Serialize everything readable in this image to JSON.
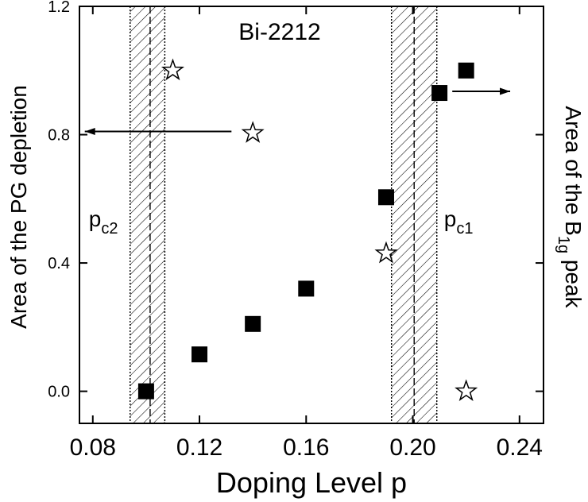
{
  "chart_data": {
    "type": "scatter",
    "title": "Bi-2212",
    "xlabel": "Doping Level p",
    "ylabel": "Area of the PG depletion",
    "y2label_parts": {
      "prefix": "Area of the B",
      "sub": "1g",
      "suffix": " peak"
    },
    "xlim": [
      0.075,
      0.249
    ],
    "ylim": [
      -0.1,
      1.2
    ],
    "x_ticks": [
      0.08,
      0.12,
      0.16,
      0.2,
      0.24
    ],
    "x_tick_labels": [
      "0.08",
      "0.12",
      "0.16",
      "0.20",
      "0.24"
    ],
    "y_ticks": [
      0.0,
      0.4,
      0.8,
      1.2
    ],
    "y_tick_labels": [
      "0.0",
      "0.4",
      "0.8",
      "1.2"
    ],
    "series": [
      {
        "marker": "filled-square",
        "x": [
          0.1,
          0.12,
          0.14,
          0.16,
          0.19,
          0.21,
          0.22
        ],
        "y": [
          0.0,
          0.115,
          0.21,
          0.32,
          0.605,
          0.93,
          1.0
        ]
      },
      {
        "marker": "open-star",
        "x": [
          0.11,
          0.14,
          0.19,
          0.22
        ],
        "y": [
          1.0,
          0.805,
          0.43,
          0.0
        ]
      }
    ],
    "bands": [
      {
        "label_base": "p",
        "label_sub": "c2",
        "x_start": 0.094,
        "x_end": 0.107,
        "center": 0.1015
      },
      {
        "label_base": "p",
        "label_sub": "c1",
        "x_start": 0.192,
        "x_end": 0.209,
        "center": 0.2005
      }
    ],
    "arrows": [
      {
        "direction": "left",
        "x_from": 0.132,
        "x_to": 0.077,
        "y": 0.81
      },
      {
        "direction": "right",
        "x_from": 0.2148,
        "x_to": 0.2365,
        "y": 0.935
      }
    ],
    "grid": false,
    "legend": "none"
  }
}
